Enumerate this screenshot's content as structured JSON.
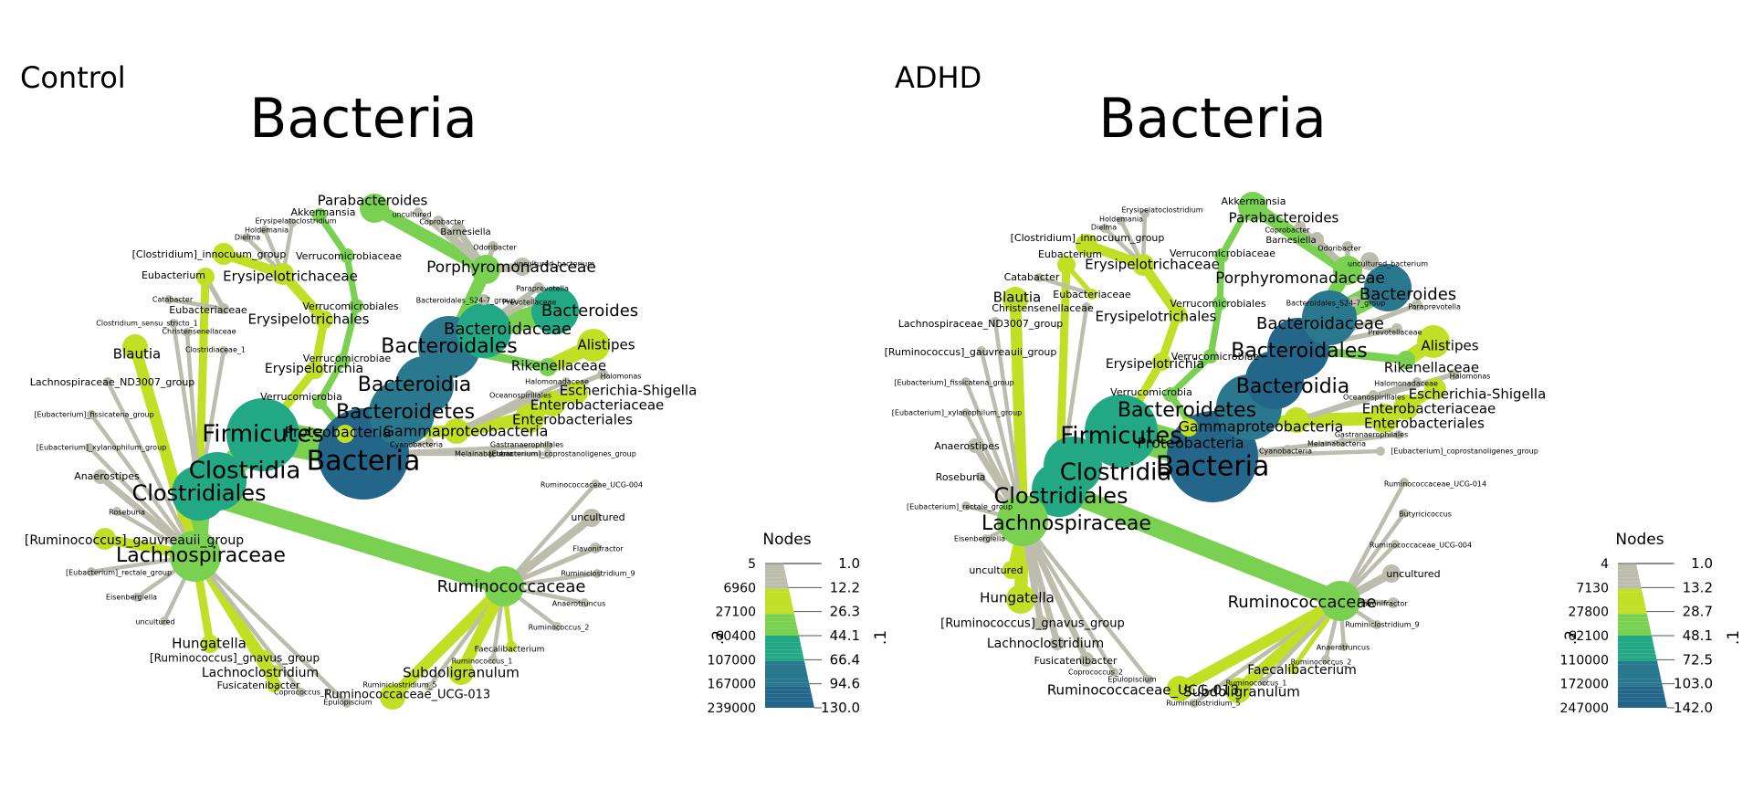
{
  "panels": [
    {
      "id": "control",
      "title": "Control",
      "root_title": "Bacteria",
      "legend": {
        "heading": "Nodes",
        "axis_left": ".2",
        "axis_right": ".1",
        "left_ticks": [
          "5",
          "6960",
          "27100",
          "60400",
          "107000",
          "167000",
          "239000"
        ],
        "right_ticks": [
          "1.0",
          "12.2",
          "26.3",
          "44.1",
          "66.4",
          "94.6",
          "130.0"
        ]
      },
      "labels": [
        "Bacteria",
        "Firmicutes",
        "Clostridia",
        "Clostridiales",
        "Lachnospiraceae",
        "Ruminococcaceae",
        "Bacteroidetes",
        "Bacteroidia",
        "Bacteroidales",
        "Bacteroidaceae",
        "Bacteroides",
        "Rikenellaceae",
        "Alistipes",
        "Porphyromonadaceae",
        "Parabacteroides",
        "Barnesiella",
        "Coprobacter",
        "uncultured",
        "Odoribacter",
        "uncultured_bacterium",
        "Bacteroidales_S24-7_group",
        "Paraprevotella",
        "Prevotellaceae",
        "Proteobacteria",
        "Gammaproteobacteria",
        "Enterobacteriales",
        "Enterobacteriaceae",
        "Escherichia-Shigella",
        "Halomonas",
        "Halomonadaceae",
        "Oceanospirillales",
        "Gastranaerophilales",
        "Melainabacteria",
        "Cyanobacteria",
        "Verrucomicrobia",
        "Verrucomicrobiae",
        "Verrucomicrobiales",
        "Verrucomicrobiaceae",
        "Akkermansia",
        "Erysipelotrichia",
        "Erysipelotrichales",
        "Erysipelotrichaceae",
        "Erysipelatoclostridium",
        "Holdemania",
        "Dielma",
        "[Clostridium]_innocuum_group",
        "Eubacterium",
        "Eubacteriaceae",
        "Catabacter",
        "Christensenellaceae",
        "Clostridium_sensu_stricto_1",
        "Clostridiaceae_1",
        "Blautia",
        "Lachnospiraceae_ND3007_group",
        "[Eubacterium]_fissicatena_group",
        "[Eubacterium]_xylanophilum_group",
        "Anaerostipes",
        "Roseburia",
        "[Ruminococcus]_gauvreauii_group",
        "[Eubacterium]_rectale_group",
        "Eisenbergiella",
        "uncultured",
        "Hungatella",
        "[Ruminococcus]_gnavus_group",
        "Lachnoclostridium",
        "Fusicatenibacter",
        "Coprococcus_3",
        "Epulopiscium",
        "Ruminococcaceae_UCG-013",
        "Ruminiclostridium_5",
        "Subdoligranulum",
        "Ruminococcus_1",
        "Faecalibacterium",
        "Ruminococcus_2",
        "Anaerotruncus",
        "Ruminiclostridium_9",
        "Flavonifractor",
        "uncultured",
        "Ruminococcaceae_UCG-004",
        "[Eubacterium]_coprostanoligenes_group"
      ]
    },
    {
      "id": "adhd",
      "title": "ADHD",
      "root_title": "Bacteria",
      "legend": {
        "heading": "Nodes",
        "axis_left": ".2",
        "axis_right": ".1",
        "left_ticks": [
          "4",
          "7130",
          "27800",
          "62100",
          "110000",
          "172000",
          "247000"
        ],
        "right_ticks": [
          "1.0",
          "13.2",
          "28.7",
          "48.1",
          "72.5",
          "103.0",
          "142.0"
        ]
      },
      "labels": [
        "Bacteria",
        "Firmicutes",
        "Clostridia",
        "Clostridiales",
        "Lachnospiraceae",
        "Ruminococcaceae",
        "Bacteroidetes",
        "Bacteroidia",
        "Bacteroidales",
        "Bacteroidaceae",
        "Bacteroides",
        "Rikenellaceae",
        "Alistipes",
        "Porphyromonadaceae",
        "Parabacteroides",
        "Barnesiella",
        "Coprobacter",
        "uncultured_bacterium",
        "Odoribacter",
        "Bacteroidales_S24-7_group",
        "Paraprevotella",
        "Prevotellaceae",
        "Proteobacteria",
        "Gammaproteobacteria",
        "Enterobacteriales",
        "Enterobacteriaceae",
        "Escherichia-Shigella",
        "Halomonas",
        "Halomonadaceae",
        "Oceanospirillales",
        "Gastranaerophilales",
        "Melainabacteria",
        "Cyanobacteria",
        "Verrucomicrobia",
        "Verrucomicrobiae",
        "Verrucomicrobiales",
        "Verrucomicrobiaceae",
        "Akkermansia",
        "Erysipelotrichia",
        "Erysipelotrichales",
        "Erysipelotrichaceae",
        "Erysipelatoclostridium",
        "Holdemania",
        "Dielma",
        "[Clostridium]_innocuum_group",
        "Eubacterium",
        "Eubacteriaceae",
        "Catabacter",
        "Christensenellaceae",
        "Blautia",
        "Lachnospiraceae_ND3007_group",
        "[Ruminococcus]_gauvreauii_group",
        "[Eubacterium]_fissicatena_group",
        "[Eubacterium]_xylanophilum_group",
        "Anaerostipes",
        "Roseburia",
        "[Eubacterium]_rectale_group",
        "Eisenbergiella",
        "uncultured",
        "Hungatella",
        "[Ruminococcus]_gnavus_group",
        "Lachnoclostridium",
        "Fusicatenibacter",
        "Coprococcus_2",
        "Epulopiscium",
        "Ruminococcaceae_UCG-013",
        "Ruminiclostridium_5",
        "Subdoligranulum",
        "Ruminococcus_1",
        "Faecalibacterium",
        "Ruminococcus_2",
        "Anaerotruncus",
        "Ruminiclostridium_9",
        "Flavonifractor",
        "uncultured",
        "Ruminococcaceae_UCG-004",
        "Butyricicoccus",
        "Ruminococcaceae_UCG-014",
        "[Eubacterium]_coprostanoligenes_group"
      ]
    }
  ],
  "colors": {
    "ramp_low": "#bdbdae",
    "ramp_mid_low": "#c0df25",
    "ramp_mid": "#7ad151",
    "ramp_mid_high": "#22a884",
    "ramp_high": "#2a788e",
    "ramp_top": "#24668a"
  }
}
